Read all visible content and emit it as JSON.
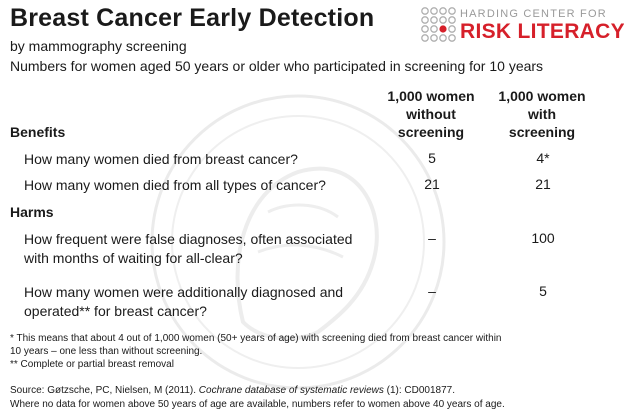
{
  "header": {
    "title": "Breast Cancer Early Detection",
    "subtitle": "by mammography screening",
    "subtitle2": "Numbers for women aged 50 years or older who participated in screening for 10 years"
  },
  "logo": {
    "top_text": "HARDING CENTER FOR",
    "main_text": "RISK LITERACY",
    "accent_color": "#d6202a"
  },
  "columns": {
    "col1": [
      "1,000 women",
      "without",
      "screening"
    ],
    "col2": [
      "1,000 women",
      "with",
      "screening"
    ]
  },
  "benefits": {
    "label": "Benefits",
    "rows": [
      {
        "question": "How many women died from breast cancer?",
        "without": "5",
        "with": "4*"
      },
      {
        "question": "How many women died from all types of cancer?",
        "without": "21",
        "with": "21"
      }
    ]
  },
  "harms": {
    "label": "Harms",
    "rows": [
      {
        "question_line1": "How frequent were false diagnoses, often associated",
        "question_line2": "with months of waiting for all-clear?",
        "without": "–",
        "with": "100"
      },
      {
        "question_line1": "How many women were additionally diagnosed and",
        "question_line2": "operated** for breast cancer?",
        "without": "–",
        "with": "5"
      }
    ]
  },
  "footnotes": {
    "note1_line1": "* This means that about 4 out of 1,000 women (50+ years of age) with screening died from breast cancer within",
    "note1_line2": "10 years – one less than without screening.",
    "note2": "** Complete or partial breast removal"
  },
  "source": {
    "prefix": "Source: Gøtzsche, PC, Nielsen, M (2011). ",
    "journal": "Cochrane database of systematic reviews",
    "suffix": " (1): CD001877.",
    "note": "Where no data for women above 50 years of age are available, numbers refer to women above 40 years of age."
  }
}
